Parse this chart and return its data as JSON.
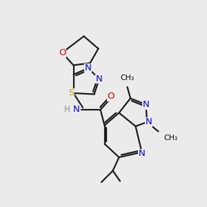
{
  "bg_color": "#ebebeb",
  "atom_colors": {
    "C": "#000000",
    "N": "#0000cc",
    "O": "#cc0000",
    "S": "#aaaa00",
    "H": "#888888"
  },
  "bond_color": "#1a1a1a",
  "bond_width": 1.6,
  "font_size_atom": 9.5,
  "font_size_methyl": 7.8
}
